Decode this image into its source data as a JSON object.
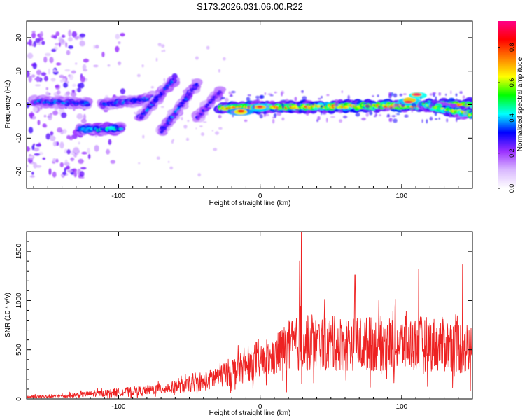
{
  "figure_title": "S173.2026.031.06.00.R22",
  "chart_data": [
    {
      "type": "heatmap",
      "title": "S173.2026.031.06.00.R22",
      "xlabel": "Height of straight line (km)",
      "ylabel": "Frequency (Hz)",
      "xlim": [
        -165,
        150
      ],
      "ylim": [
        -25,
        25
      ],
      "x_ticks": [
        -100,
        0,
        100
      ],
      "y_ticks": [
        -20,
        -10,
        0,
        10,
        20
      ],
      "colorbar": {
        "label": "Normalized spectral amplitude",
        "range": [
          0.0,
          0.95
        ],
        "ticks": [
          0.0,
          0.2,
          0.4,
          0.6,
          0.8
        ],
        "colormap": [
          "#ffffff",
          "#d9b8ff",
          "#9b30ff",
          "#0000ff",
          "#00ffff",
          "#00ff00",
          "#ffff00",
          "#ff7f00",
          "#ff0000",
          "#ff0088"
        ]
      },
      "ridge_segments": [
        {
          "name": "scattered-left",
          "x": [
            -165,
            -95
          ],
          "y": [
            -22,
            22
          ],
          "amp": 0.15
        },
        {
          "name": "early-band",
          "x": [
            -160,
            -122
          ],
          "y": [
            1,
            0.5
          ],
          "amp": 0.35
        },
        {
          "name": "lower-band",
          "x": [
            -128,
            -98
          ],
          "y": [
            -7.5,
            -7
          ],
          "amp": 0.45
        },
        {
          "name": "upper-band",
          "x": [
            -112,
            -75
          ],
          "y": [
            0,
            2
          ],
          "amp": 0.35
        },
        {
          "name": "rising-band-1",
          "x": [
            -85,
            -60
          ],
          "y": [
            -4,
            8
          ],
          "amp": 0.35
        },
        {
          "name": "rising-band-2",
          "x": [
            -70,
            -45
          ],
          "y": [
            -8,
            6
          ],
          "amp": 0.35
        },
        {
          "name": "rising-band-3",
          "x": [
            -45,
            -28
          ],
          "y": [
            -4,
            4
          ],
          "amp": 0.3
        },
        {
          "name": "main-band",
          "x": [
            -28,
            150
          ],
          "y": [
            -1,
            0
          ],
          "amp": 0.7
        },
        {
          "name": "peak-1",
          "x": [
            -14,
            -14
          ],
          "y": [
            -2,
            -2
          ],
          "amp": 0.85
        },
        {
          "name": "peak-2",
          "x": [
            0,
            0
          ],
          "y": [
            -0.5,
            -0.5
          ],
          "amp": 0.9
        },
        {
          "name": "peak-3",
          "x": [
            105,
            105
          ],
          "y": [
            1,
            1
          ],
          "amp": 0.9
        },
        {
          "name": "peak-4",
          "x": [
            111,
            111
          ],
          "y": [
            2.8,
            2.8
          ],
          "amp": 0.95
        },
        {
          "name": "tail-band",
          "x": [
            115,
            150
          ],
          "y": [
            0,
            -3
          ],
          "amp": 0.6
        }
      ]
    },
    {
      "type": "line",
      "xlabel": "Height of straight line (km)",
      "ylabel": "SNR (10 * v/v)",
      "xlim": [
        -165,
        150
      ],
      "ylim": [
        0,
        1700
      ],
      "x_ticks": [
        -100,
        0,
        100
      ],
      "y_ticks": [
        0,
        500,
        1000,
        1500
      ],
      "series": [
        {
          "name": "SNR",
          "color": "#ee2222",
          "x": [
            -165,
            -140,
            -120,
            -100,
            -80,
            -60,
            -40,
            -30,
            -20,
            -10,
            0,
            10,
            14,
            20,
            25,
            30,
            40,
            50,
            60,
            80,
            100,
            120,
            140,
            150
          ],
          "mean": [
            20,
            30,
            50,
            70,
            90,
            120,
            170,
            230,
            280,
            330,
            370,
            400,
            480,
            520,
            550,
            560,
            560,
            560,
            560,
            560,
            560,
            560,
            540,
            480
          ],
          "spread": [
            20,
            25,
            35,
            50,
            60,
            80,
            110,
            160,
            180,
            200,
            200,
            220,
            300,
            350,
            350,
            350,
            350,
            350,
            350,
            350,
            350,
            350,
            350,
            350
          ],
          "peaks": [
            [
              29,
              1700
            ],
            [
              28,
              1400
            ],
            [
              112,
              1320
            ],
            [
              143,
              1370
            ],
            [
              67,
              1260
            ]
          ]
        }
      ]
    }
  ]
}
